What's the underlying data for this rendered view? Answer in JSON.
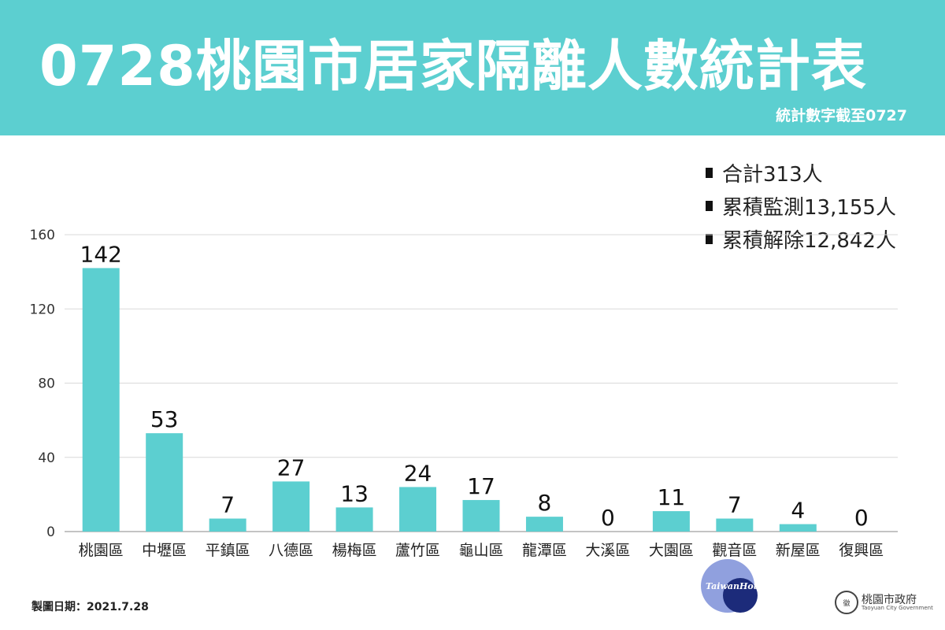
{
  "header": {
    "title": "0728桃園市居家隔離人數統計表",
    "subtitle": "統計數字截至0727"
  },
  "stats": [
    {
      "label": "合計313人"
    },
    {
      "label": "累積監測13,155人"
    },
    {
      "label": "累積解除12,842人"
    }
  ],
  "chart_data": {
    "type": "bar",
    "title": "0728桃園市居家隔離人數統計表",
    "categories": [
      "桃園區",
      "中壢區",
      "平鎮區",
      "八德區",
      "楊梅區",
      "蘆竹區",
      "龜山區",
      "龍潭區",
      "大溪區",
      "大園區",
      "觀音區",
      "新屋區",
      "復興區"
    ],
    "values": [
      142,
      53,
      7,
      27,
      13,
      24,
      17,
      8,
      0,
      11,
      7,
      4,
      0
    ],
    "ylim": [
      0,
      160
    ],
    "yticks": [
      0,
      40,
      80,
      120,
      160
    ],
    "grid": true,
    "bar_color": "#5ccfd0",
    "xlabel": "",
    "ylabel": ""
  },
  "footer": {
    "date": "製圖日期：2021.7.28",
    "watermark": "TaiwanHot",
    "logo_name": "桃園市政府",
    "logo_en": "Taoyuan City Government",
    "logo_seal": "徽"
  },
  "colors": {
    "banner": "#5ccfd0",
    "bar": "#5ccfd0"
  }
}
